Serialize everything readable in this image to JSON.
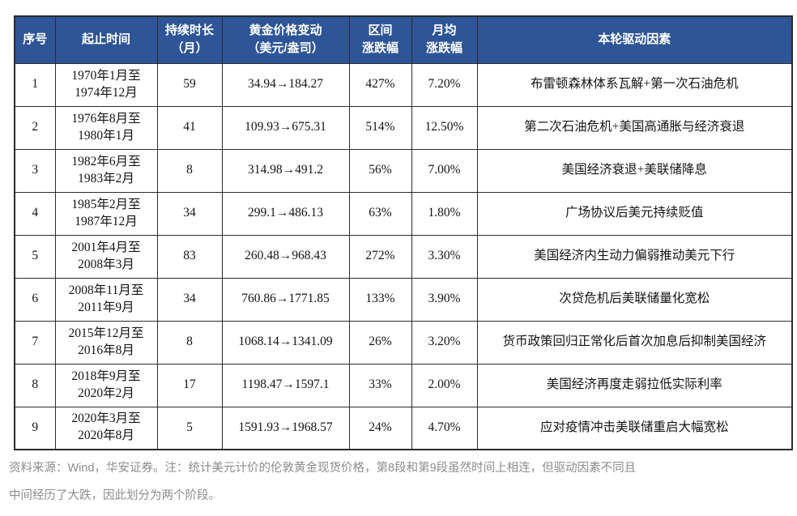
{
  "colors": {
    "header_bg": "#2E5597",
    "header_text": "#FFFFFF",
    "cell_text": "#141414",
    "border": "#2B2B2B",
    "footer_text": "#8C8C8C"
  },
  "table": {
    "columns": [
      {
        "line1": "序号",
        "line2": ""
      },
      {
        "line1": "起止时间",
        "line2": ""
      },
      {
        "line1": "持续时长",
        "line2": "（月）"
      },
      {
        "line1": "黄金价格变动",
        "line2": "（美元/盎司）"
      },
      {
        "line1": "区间",
        "line2": "涨跌幅"
      },
      {
        "line1": "月均",
        "line2": "涨跌幅"
      },
      {
        "line1": "本轮驱动因素",
        "line2": ""
      }
    ],
    "rows": [
      {
        "seq": "1",
        "period1": "1970年1月至",
        "period2": "1974年12月",
        "duration": "59",
        "price": "34.94→184.27",
        "range": "427%",
        "monthly": "7.20%",
        "driver": "布雷顿森林体系瓦解+第一次石油危机"
      },
      {
        "seq": "2",
        "period1": "1976年8月至",
        "period2": "1980年1月",
        "duration": "41",
        "price": "109.93→675.31",
        "range": "514%",
        "monthly": "12.50%",
        "driver": "第二次石油危机+美国高通胀与经济衰退"
      },
      {
        "seq": "3",
        "period1": "1982年6月至",
        "period2": "1983年2月",
        "duration": "8",
        "price": "314.98→491.2",
        "range": "56%",
        "monthly": "7.00%",
        "driver": "美国经济衰退+美联储降息"
      },
      {
        "seq": "4",
        "period1": "1985年2月至",
        "period2": "1987年12月",
        "duration": "34",
        "price": "299.1→486.13",
        "range": "63%",
        "monthly": "1.80%",
        "driver": "广场协议后美元持续贬值"
      },
      {
        "seq": "5",
        "period1": "2001年4月至",
        "period2": "2008年3月",
        "duration": "83",
        "price": "260.48→968.43",
        "range": "272%",
        "monthly": "3.30%",
        "driver": "美国经济内生动力偏弱推动美元下行"
      },
      {
        "seq": "6",
        "period1": "2008年11月至",
        "period2": "2011年9月",
        "duration": "34",
        "price": "760.86→1771.85",
        "range": "133%",
        "monthly": "3.90%",
        "driver": "次贷危机后美联储量化宽松"
      },
      {
        "seq": "7",
        "period1": "2015年12月至",
        "period2": "2016年8月",
        "duration": "8",
        "price": "1068.14→1341.09",
        "range": "26%",
        "monthly": "3.20%",
        "driver": "货币政策回归正常化后首次加息后抑制美国经济"
      },
      {
        "seq": "8",
        "period1": "2018年9月至",
        "period2": "2020年2月",
        "duration": "17",
        "price": "1198.47→1597.1",
        "range": "33%",
        "monthly": "2.00%",
        "driver": "美国经济再度走弱拉低实际利率"
      },
      {
        "seq": "9",
        "period1": "2020年3月至",
        "period2": "2020年8月",
        "duration": "5",
        "price": "1591.93→1968.57",
        "range": "24%",
        "monthly": "4.70%",
        "driver": "应对疫情冲击美联储重启大幅宽松"
      }
    ]
  },
  "footer": {
    "line1": "资料来源：Wind，华安证券。注：统计美元计价的伦敦黄金现货价格，第8段和第9段虽然时间上相连，但驱动因素不同且",
    "line2": "中间经历了大跌，因此划分为两个阶段。"
  }
}
